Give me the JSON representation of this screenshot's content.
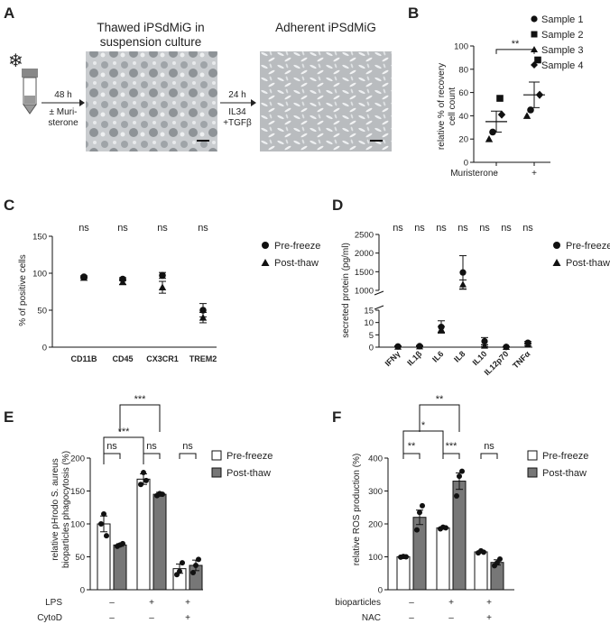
{
  "panels": {
    "A": {
      "letter": "A",
      "photo1_title_line1": "Thawed iPSdMiG in",
      "photo1_title_line2": "suspension culture",
      "photo2_title": "Adherent iPSdMiG",
      "step1_top": "48 h",
      "step1_bottom_line1": "± Muri-",
      "step1_bottom_line2": "sterone",
      "step2_top": "24 h",
      "step2_bottom_line1": "IL34",
      "step2_bottom_line2": "+TGFβ",
      "snowflake": "❄",
      "icons": [
        "snowflake-icon",
        "cryovial-icon",
        "arrow-right-icon"
      ]
    },
    "B": {
      "letter": "B",
      "ylabel_line1": "relative % of recovery",
      "ylabel_line2": "cell count",
      "xlabel": "Muristerone",
      "sig": "**",
      "legend": [
        {
          "label": "Sample 1",
          "marker": "circle"
        },
        {
          "label": "Sample 2",
          "marker": "square"
        },
        {
          "label": "Sample 3",
          "marker": "triangle"
        },
        {
          "label": "Sample 4",
          "marker": "diamond"
        }
      ]
    },
    "C": {
      "letter": "C",
      "ylabel": "% of positive cells",
      "legend": [
        {
          "label": "Pre-freeze",
          "marker": "circle"
        },
        {
          "label": "Post-thaw",
          "marker": "triangle"
        }
      ]
    },
    "D": {
      "letter": "D",
      "ylabel": "secreted  protein (pg/ml)",
      "legend": [
        {
          "label": "Pre-freeze",
          "marker": "circle"
        },
        {
          "label": "Post-thaw",
          "marker": "triangle"
        }
      ]
    },
    "E": {
      "letter": "E",
      "ylabel_line1": "relative pHrodo S. aureus",
      "ylabel_line2": "bioparticles phagocytosis  (%)",
      "cond_row1_label": "LPS",
      "cond_row2_label": "CytoD",
      "cond_row1": [
        "–",
        "+",
        "+"
      ],
      "cond_row2": [
        "–",
        "–",
        "+"
      ],
      "legend": [
        {
          "label": "Pre-freeze",
          "fill": "#ffffff"
        },
        {
          "label": "Post-thaw",
          "fill": "#777777"
        }
      ]
    },
    "F": {
      "letter": "F",
      "ylabel": "relative ROS production (%)",
      "cond_row1_label": "bioparticles",
      "cond_row2_label": "NAC",
      "cond_row1": [
        "–",
        "+",
        "+"
      ],
      "cond_row2": [
        "–",
        "–",
        "+"
      ],
      "legend": [
        {
          "label": "Pre-freeze",
          "fill": "#ffffff"
        },
        {
          "label": "Post-thaw",
          "fill": "#777777"
        }
      ]
    }
  },
  "chart_data": [
    {
      "panel": "B",
      "type": "scatter",
      "categories": [
        "-",
        "+"
      ],
      "ylim": [
        0,
        100
      ],
      "yticks": [
        0,
        20,
        40,
        60,
        80,
        100
      ],
      "series": [
        {
          "name": "Sample 1",
          "marker": "circle",
          "values": [
            26,
            45
          ]
        },
        {
          "name": "Sample 2",
          "marker": "square",
          "values": [
            55,
            88
          ]
        },
        {
          "name": "Sample 3",
          "marker": "triangle",
          "values": [
            20,
            40
          ]
        },
        {
          "name": "Sample 4",
          "marker": "diamond",
          "values": [
            41,
            58
          ]
        }
      ],
      "mean": [
        35,
        58
      ],
      "sem": [
        9,
        11
      ],
      "significance": [
        {
          "between": [
            0,
            1
          ],
          "label": "**"
        }
      ]
    },
    {
      "panel": "C",
      "type": "scatter",
      "categories": [
        "CD11B",
        "CD45",
        "CX3CR1",
        "TREM2"
      ],
      "ylim": [
        0,
        150
      ],
      "yticks": [
        0,
        50,
        100,
        150
      ],
      "series": [
        {
          "name": "Pre-freeze",
          "marker": "circle",
          "values": [
            95,
            92,
            97,
            50
          ],
          "err": [
            1.5,
            2,
            4,
            9
          ]
        },
        {
          "name": "Post-thaw",
          "marker": "triangle",
          "values": [
            94,
            88,
            81,
            40
          ],
          "err": [
            1,
            3,
            8,
            7
          ]
        }
      ],
      "significance": [
        "ns",
        "ns",
        "ns",
        "ns"
      ]
    },
    {
      "panel": "D",
      "type": "scatter",
      "categories": [
        "IFNγ",
        "IL1β",
        "IL6",
        "IL8",
        "IL10",
        "IL12p70",
        "TNFα"
      ],
      "ylim_lower": [
        0,
        15
      ],
      "yticks_lower": [
        0,
        5,
        10,
        15
      ],
      "ylim_upper": [
        1000,
        2500
      ],
      "yticks_upper": [
        1000,
        1500,
        2000,
        2500
      ],
      "series": [
        {
          "name": "Pre-freeze",
          "marker": "circle",
          "values": [
            0.3,
            0.4,
            8.2,
            1480,
            2.4,
            0.1,
            1.8
          ],
          "err": [
            0.2,
            0.3,
            2.5,
            450,
            1.5,
            0.1,
            0.5
          ]
        },
        {
          "name": "Post-thaw",
          "marker": "triangle",
          "values": [
            0.2,
            0.3,
            7.2,
            1160,
            0.6,
            0.1,
            1.0
          ],
          "err": [
            0.1,
            0.2,
            1.2,
            120,
            0.4,
            0.1,
            0.4
          ]
        }
      ],
      "significance": [
        "ns",
        "ns",
        "ns",
        "ns",
        "ns",
        "ns",
        "ns"
      ]
    },
    {
      "panel": "E",
      "type": "bar",
      "groups": 3,
      "ylim": [
        0,
        200
      ],
      "yticks": [
        0,
        50,
        100,
        150,
        200
      ],
      "series": [
        {
          "name": "Pre-freeze",
          "values": [
            100,
            168,
            32
          ],
          "err": [
            12,
            8,
            7
          ],
          "points": [
            [
              100,
              115,
              82
            ],
            [
              160,
              178,
              166
            ],
            [
              23,
              28,
              41
            ]
          ]
        },
        {
          "name": "Post-thaw",
          "values": [
            68,
            145,
            37
          ],
          "err": [
            2,
            3,
            8
          ],
          "points": [
            [
              66,
              68,
              70
            ],
            [
              143,
              146,
              145
            ],
            [
              26,
              37,
              46
            ]
          ]
        }
      ],
      "within_group_sig": [
        "ns",
        "ns",
        "ns"
      ],
      "brackets": [
        {
          "from_group": 0,
          "to_group": 1,
          "label": "***",
          "level": 2
        },
        {
          "from_group": 0,
          "to_group": 1,
          "label": "***",
          "level": 1
        }
      ]
    },
    {
      "panel": "F",
      "type": "bar",
      "groups": 3,
      "ylim": [
        0,
        400
      ],
      "yticks": [
        0,
        100,
        200,
        300,
        400
      ],
      "series": [
        {
          "name": "Pre-freeze",
          "values": [
            100,
            188,
            115
          ],
          "err": [
            2,
            3,
            3
          ],
          "points": [
            [
              99,
              101,
              100
            ],
            [
              185,
              190,
              188
            ],
            [
              112,
              118,
              114
            ]
          ]
        },
        {
          "name": "Post-thaw",
          "values": [
            220,
            330,
            83
          ],
          "err": [
            22,
            25,
            8
          ],
          "points": [
            [
              182,
              235,
              255
            ],
            [
              285,
              345,
              360
            ],
            [
              73,
              82,
              93
            ]
          ]
        }
      ],
      "within_group_sig": [
        "**",
        "***",
        "ns"
      ],
      "brackets": [
        {
          "from_group": 0,
          "to_group": 1,
          "label": "**",
          "level": 2
        },
        {
          "from_group": 0,
          "to_group": 1,
          "label": "*",
          "level": 1
        }
      ]
    }
  ]
}
